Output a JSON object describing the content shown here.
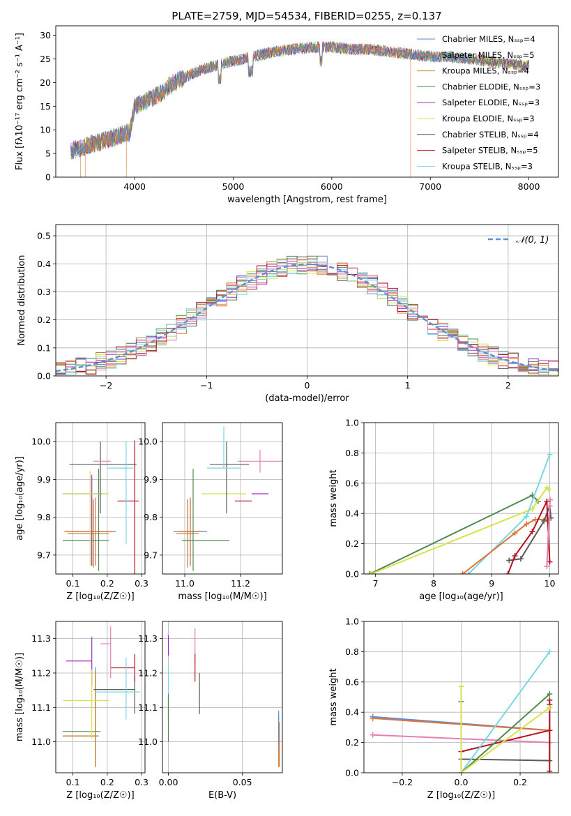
{
  "figure_title": "PLATE=2759, MJD=54534, FIBERID=0255, z=0.137",
  "colors": {
    "chabrier_miles": "#5b8fd6",
    "salpeter_miles": "#e0733a",
    "kroupa_miles": "#c0812a",
    "chabrier_elodie": "#4f8a4f",
    "salpeter_elodie": "#9b2fc4",
    "kroupa_elodie": "#d7e24a",
    "chabrier_stelib": "#5a5a5a",
    "salpeter_stelib": "#b5121b",
    "kroupa_stelib": "#78d8e0",
    "normal_curve": "#5b8fd6",
    "pink": "#e67fb3",
    "grid": "#b0b0b0"
  },
  "chart_data": [
    {
      "id": "spectrum",
      "type": "line",
      "title": "PLATE=2759, MJD=54534, FIBERID=0255, z=0.137",
      "xlabel": "wavelength [Angstrom, rest frame]",
      "ylabel": "Flux [fλ10⁻¹⁷ erg cm⁻² s⁻¹ A⁻¹]",
      "xlim": [
        3200,
        8300
      ],
      "ylim": [
        0,
        32
      ],
      "xticks": [
        "4000",
        "5000",
        "6000",
        "7000",
        "8000"
      ],
      "yticks": [
        "0",
        "5",
        "10",
        "15",
        "20",
        "25",
        "30"
      ],
      "legend_position": "upper right",
      "series": [
        {
          "name": "Chabrier MILES, N_SSP=4"
        },
        {
          "name": "Salpeter MILES, N_SSP=5"
        },
        {
          "name": "Kroupa MILES, N_SSP=4"
        },
        {
          "name": "Chabrier ELODIE, N_SSP=3"
        },
        {
          "name": "Salpeter ELODIE, N_SSP=3"
        },
        {
          "name": "Kroupa ELODIE, N_SSP=3"
        },
        {
          "name": "Chabrier STELIB, N_SSP=4"
        },
        {
          "name": "Salpeter STELIB, N_SSP=5"
        },
        {
          "name": "Kroupa STELIB, N_SSP=3"
        }
      ],
      "continuum_x": [
        3350,
        3500,
        3650,
        3800,
        3950,
        4000,
        4100,
        4250,
        4400,
        4600,
        4800,
        5000,
        5200,
        5400,
        5600,
        5800,
        6000,
        6200,
        6400,
        6600,
        6800,
        7000,
        7200,
        7400,
        7600,
        7800,
        8000
      ],
      "continuum_y": [
        5.5,
        6.5,
        7.5,
        8.5,
        9.5,
        15.0,
        16.0,
        17.5,
        20.0,
        22.0,
        23.5,
        24.5,
        25.5,
        26.5,
        27.0,
        27.5,
        27.5,
        27.0,
        27.0,
        26.5,
        26.0,
        25.5,
        25.5,
        25.0,
        24.5,
        24.0,
        23.5
      ],
      "model_wavelength_ranges": [
        [
          3350,
          7400
        ],
        [
          3500,
          6800
        ],
        [
          3450,
          3920
        ],
        [
          3350,
          8000
        ],
        [
          3350,
          8000
        ],
        [
          3350,
          8000
        ],
        [
          3350,
          8000
        ],
        [
          3350,
          8000
        ],
        [
          3350,
          8000
        ]
      ]
    },
    {
      "id": "residuals",
      "type": "histogram",
      "xlabel": "(data-model)/error",
      "ylabel": "Normed distribution",
      "xlim": [
        -2.5,
        2.5
      ],
      "ylim": [
        0,
        0.54
      ],
      "xticks": [
        "−2",
        "−1",
        "0",
        "1",
        "2"
      ],
      "yticks": [
        "0.0",
        "0.1",
        "0.2",
        "0.3",
        "0.4",
        "0.5"
      ],
      "legend": [
        {
          "name": "𝒩(0, 1)",
          "style": "dashed"
        }
      ],
      "legend_position": "upper right",
      "bin_width": 0.1,
      "bin_start": -2.5,
      "num_histograms": 9
    },
    {
      "id": "age_vs_Z",
      "type": "errorbar",
      "xlabel": "Z [log₁₀(Z/Z☉)]",
      "ylabel": "age  [log₁₀(age/yr)]",
      "xlim": [
        0.05,
        0.31
      ],
      "ylim": [
        9.65,
        10.05
      ],
      "xticks": [
        "0.1",
        "0.2",
        "0.3"
      ],
      "yticks": [
        "9.7",
        "9.8",
        "9.9",
        "10.0"
      ],
      "points": [
        {
          "model": "chabrier_miles",
          "x": 0.155,
          "xerr": [
            0.075,
            0.07
          ],
          "y": 9.762,
          "yerr": [
            0.09,
            0.09
          ]
        },
        {
          "model": "salpeter_miles",
          "x": 0.165,
          "xerr": [
            0.09,
            0.055
          ],
          "y": 9.762,
          "yerr": [
            0.09,
            0.09
          ]
        },
        {
          "model": "kroupa_miles",
          "x": 0.16,
          "xerr": [
            0.075,
            0.045
          ],
          "y": 9.757,
          "yerr": [
            0.09,
            0.09
          ]
        },
        {
          "model": "chabrier_elodie",
          "x": 0.175,
          "xerr": [
            0.105,
            0.03
          ],
          "y": 9.738,
          "yerr": [
            0.08,
            0.19
          ]
        },
        {
          "model": "salpeter_elodie",
          "x": 0.155,
          "xerr": [
            0.085,
            0.04
          ],
          "y": 9.862,
          "yerr": [
            0.19,
            0.05
          ]
        },
        {
          "model": "kroupa_elodie",
          "x": 0.15,
          "xerr": [
            0.08,
            0.055
          ],
          "y": 9.862,
          "yerr": [
            0.19,
            0.06
          ]
        },
        {
          "model": "chabrier_stelib",
          "x": 0.18,
          "xerr": [
            0.09,
            0.105
          ],
          "y": 9.94,
          "yerr": [
            0.13,
            0.06
          ]
        },
        {
          "model": "salpeter_stelib",
          "x": 0.28,
          "xerr": [
            0.05,
            0.012
          ],
          "y": 9.843,
          "yerr": [
            0.2,
            0.16
          ]
        },
        {
          "model": "kroupa_stelib",
          "x": 0.255,
          "xerr": [
            0.055,
            0.02
          ],
          "y": 9.93,
          "yerr": [
            0.2,
            0.07
          ]
        },
        {
          "model": "pink",
          "x": 0.165,
          "xerr": [
            0.005,
            0.045
          ],
          "y": 9.948,
          "yerr": [
            0.0,
            0.0
          ]
        }
      ]
    },
    {
      "id": "age_vs_mass",
      "type": "errorbar",
      "xlabel": "mass [log₁₀(M/M☉)]",
      "ylabel": "",
      "xlim": [
        10.92,
        11.35
      ],
      "ylim": [
        9.65,
        10.05
      ],
      "xticks": [
        "11.0",
        "11.2"
      ],
      "yticks": [
        "9.7",
        "9.8",
        "9.9",
        "10.0"
      ],
      "points": [
        {
          "model": "chabrier_miles",
          "x": 11.02,
          "xerr": [
            0.06,
            0.06
          ],
          "y": 9.762,
          "yerr": [
            0.09,
            0.09
          ]
        },
        {
          "model": "salpeter_miles",
          "x": 11.02,
          "xerr": [
            0.04,
            0.04
          ],
          "y": 9.762,
          "yerr": [
            0.09,
            0.09
          ]
        },
        {
          "model": "kroupa_miles",
          "x": 11.01,
          "xerr": [
            0.04,
            0.04
          ],
          "y": 9.757,
          "yerr": [
            0.09,
            0.09
          ]
        },
        {
          "model": "chabrier_elodie",
          "x": 11.03,
          "xerr": [
            0.04,
            0.13
          ],
          "y": 9.738,
          "yerr": [
            0.08,
            0.19
          ]
        },
        {
          "model": "salpeter_elodie",
          "x": 11.24,
          "xerr": [
            0.0,
            0.06
          ],
          "y": 9.862,
          "yerr": [
            0.0,
            0.0
          ]
        },
        {
          "model": "kroupa_elodie",
          "x": 11.14,
          "xerr": [
            0.08,
            0.08
          ],
          "y": 9.862,
          "yerr": [
            0.0,
            0.0
          ]
        },
        {
          "model": "chabrier_stelib",
          "x": 11.15,
          "xerr": [
            0.06,
            0.08
          ],
          "y": 9.94,
          "yerr": [
            0.13,
            0.06
          ]
        },
        {
          "model": "salpeter_stelib",
          "x": 11.21,
          "xerr": [
            0.03,
            0.03
          ],
          "y": 9.843,
          "yerr": [
            0.0,
            0.0
          ]
        },
        {
          "model": "kroupa_stelib",
          "x": 11.14,
          "xerr": [
            0.06,
            0.06
          ],
          "y": 9.93,
          "yerr": [
            0.0,
            0.11
          ]
        },
        {
          "model": "pink",
          "x": 11.27,
          "xerr": [
            0.08,
            0.08
          ],
          "y": 9.948,
          "yerr": [
            0.03,
            0.03
          ]
        }
      ]
    },
    {
      "id": "weight_vs_age",
      "type": "line",
      "xlabel": "age  [log₁₀(age/yr)]",
      "ylabel": "mass weight",
      "xlim": [
        6.8,
        10.15
      ],
      "ylim": [
        0.0,
        1.0
      ],
      "xticks": [
        "7",
        "8",
        "9",
        "10"
      ],
      "yticks": [
        "0.0",
        "0.2",
        "0.4",
        "0.6",
        "0.8",
        "1.0"
      ],
      "series": [
        {
          "model": "chabrier_elodie",
          "x": [
            6.9,
            9.7,
            9.8
          ],
          "y": [
            0.0,
            0.52,
            0.48
          ]
        },
        {
          "model": "kroupa_elodie",
          "x": [
            6.92,
            9.7,
            9.95,
            9.98
          ],
          "y": [
            0.0,
            0.43,
            0.57,
            0.56
          ]
        },
        {
          "model": "kroupa_stelib",
          "x": [
            8.6,
            9.6,
            10.0
          ],
          "y": [
            0.0,
            0.38,
            0.79
          ]
        },
        {
          "model": "salpeter_miles",
          "x": [
            8.5,
            9.4,
            9.6,
            9.75,
            9.95
          ],
          "y": [
            0.0,
            0.27,
            0.33,
            0.36,
            0.36
          ]
        },
        {
          "model": "chabrier_stelib",
          "x": [
            9.3,
            9.5,
            9.9,
            10.0,
            10.02
          ],
          "y": [
            0.09,
            0.1,
            0.35,
            0.45,
            0.37
          ]
        },
        {
          "model": "salpeter_stelib",
          "x": [
            9.28,
            9.4,
            9.7,
            9.95,
            10.0
          ],
          "y": [
            0.0,
            0.12,
            0.28,
            0.48,
            0.08
          ]
        },
        {
          "model": "pink",
          "x": [
            9.95,
            10.0,
            10.01
          ],
          "y": [
            0.05,
            0.45,
            0.49
          ]
        }
      ]
    },
    {
      "id": "mass_vs_Z",
      "type": "errorbar",
      "xlabel": "Z [log₁₀(Z/Z☉)]",
      "ylabel": "mass [log₁₀(M/M☉)]",
      "xlim": [
        0.05,
        0.31
      ],
      "ylim": [
        10.91,
        11.35
      ],
      "xticks": [
        "0.1",
        "0.2",
        "0.3"
      ],
      "yticks": [
        "11.0",
        "11.1",
        "11.2",
        "11.3"
      ],
      "points": [
        {
          "model": "chabrier_miles",
          "x": 0.165,
          "xerr": [
            0.09,
            0.0
          ],
          "y": 11.017,
          "yerr": [
            0.09,
            0.2
          ]
        },
        {
          "model": "salpeter_miles",
          "x": 0.165,
          "xerr": [
            0.095,
            0.01
          ],
          "y": 11.017,
          "yerr": [
            0.09,
            0.19
          ]
        },
        {
          "model": "kroupa_miles",
          "x": 0.165,
          "xerr": [
            0.095,
            0.01
          ],
          "y": 11.017,
          "yerr": [
            0.09,
            0.19
          ]
        },
        {
          "model": "chabrier_elodie",
          "x": 0.15,
          "xerr": [
            0.08,
            0.03
          ],
          "y": 11.03,
          "yerr": [
            0.0,
            0.0
          ]
        },
        {
          "model": "salpeter_elodie",
          "x": 0.155,
          "xerr": [
            0.075,
            0.0
          ],
          "y": 11.235,
          "yerr": [
            0.07,
            0.07
          ]
        },
        {
          "model": "kroupa_elodie",
          "x": 0.155,
          "xerr": [
            0.085,
            0.05
          ],
          "y": 11.12,
          "yerr": [
            0.11,
            0.09
          ]
        },
        {
          "model": "chabrier_stelib",
          "x": 0.28,
          "xerr": [
            0.12,
            0.0
          ],
          "y": 11.152,
          "yerr": [
            0.07,
            0.04
          ]
        },
        {
          "model": "salpeter_stelib",
          "x": 0.28,
          "xerr": [
            0.07,
            0.0
          ],
          "y": 11.215,
          "yerr": [
            0.04,
            0.04
          ]
        },
        {
          "model": "kroupa_stelib",
          "x": 0.255,
          "xerr": [
            0.09,
            0.04
          ],
          "y": 11.145,
          "yerr": [
            0.08,
            0.1
          ]
        },
        {
          "model": "pink",
          "x": 0.21,
          "xerr": [
            0.03,
            0.0
          ],
          "y": 11.285,
          "yerr": [
            0.1,
            0.05
          ]
        }
      ]
    },
    {
      "id": "mass_vs_ebv",
      "type": "errorbar",
      "xlabel": "E(B-V)",
      "ylabel": "",
      "xlim": [
        -0.004,
        0.077
      ],
      "ylim": [
        10.91,
        11.35
      ],
      "xticks": [
        "0.00",
        "0.05"
      ],
      "yticks": [
        "11.0",
        "11.1",
        "11.2",
        "11.3"
      ],
      "points": [
        {
          "model": "salpeter_elodie",
          "x": 0.0,
          "xerr": [
            0.0,
            0.0
          ],
          "y": 11.25,
          "yerr": [
            0.0,
            0.06
          ]
        },
        {
          "model": "kroupa_stelib",
          "x": 0.0,
          "xerr": [
            0.0,
            0.0
          ],
          "y": 11.12,
          "yerr": [
            0.06,
            0.1
          ]
        },
        {
          "model": "chabrier_elodie",
          "x": 0.0,
          "xerr": [
            0.0,
            0.0
          ],
          "y": 11.08,
          "yerr": [
            0.08,
            0.06
          ]
        },
        {
          "model": "pink",
          "x": 0.018,
          "xerr": [
            0.0,
            0.0
          ],
          "y": 11.28,
          "yerr": [
            0.05,
            0.05
          ]
        },
        {
          "model": "salpeter_stelib",
          "x": 0.018,
          "xerr": [
            0.0,
            0.0
          ],
          "y": 11.215,
          "yerr": [
            0.04,
            0.04
          ]
        },
        {
          "model": "chabrier_stelib",
          "x": 0.021,
          "xerr": [
            0.0,
            0.0
          ],
          "y": 11.15,
          "yerr": [
            0.07,
            0.05
          ]
        },
        {
          "model": "kroupa_miles",
          "x": 0.0745,
          "xerr": [
            0.0,
            0.0
          ],
          "y": 11.017,
          "yerr": [
            0.09,
            0.06
          ]
        },
        {
          "model": "chabrier_miles",
          "x": 0.0745,
          "xerr": [
            0.0,
            0.0
          ],
          "y": 11.03,
          "yerr": [
            0.04,
            0.06
          ]
        },
        {
          "model": "salpeter_miles",
          "x": 0.075,
          "xerr": [
            0.0,
            0.0
          ],
          "y": 11.017,
          "yerr": [
            0.09,
            0.04
          ]
        }
      ]
    },
    {
      "id": "weight_vs_Z",
      "type": "line",
      "xlabel": "Z [log₁₀(Z/Z☉)]",
      "ylabel": "mass weight",
      "xlim": [
        -0.33,
        0.33
      ],
      "ylim": [
        0.0,
        1.0
      ],
      "xticks": [
        "−0.2",
        "0.0",
        "0.2"
      ],
      "yticks": [
        "0.0",
        "0.2",
        "0.4",
        "0.6",
        "0.8",
        "1.0"
      ],
      "series": [
        {
          "model": "chabrier_miles",
          "x": [
            -0.3,
            0.3
          ],
          "y": [
            0.37,
            0.28
          ]
        },
        {
          "model": "salpeter_miles",
          "x": [
            -0.3,
            0.3
          ],
          "y": [
            0.36,
            0.28
          ]
        },
        {
          "model": "pink",
          "x": [
            -0.3,
            0.3
          ],
          "y": [
            0.25,
            0.2
          ]
        },
        {
          "model": "chabrier_stelib",
          "x": [
            0.0,
            0.3,
            0.3
          ],
          "y": [
            0.09,
            0.08,
            0.45
          ]
        },
        {
          "model": "salpeter_stelib",
          "x": [
            0.0,
            0.3,
            0.3,
            0.3
          ],
          "y": [
            0.14,
            0.28,
            0.48,
            0.01
          ]
        },
        {
          "model": "kroupa_stelib",
          "x": [
            0.0,
            0.3
          ],
          "y": [
            0.0,
            0.8
          ]
        },
        {
          "model": "chabrier_elodie",
          "x": [
            0.0,
            0.0,
            0.3
          ],
          "y": [
            0.47,
            0.0,
            0.52
          ]
        },
        {
          "model": "kroupa_elodie",
          "x": [
            0.0,
            0.0,
            0.3
          ],
          "y": [
            0.57,
            0.0,
            0.43
          ]
        }
      ]
    }
  ]
}
